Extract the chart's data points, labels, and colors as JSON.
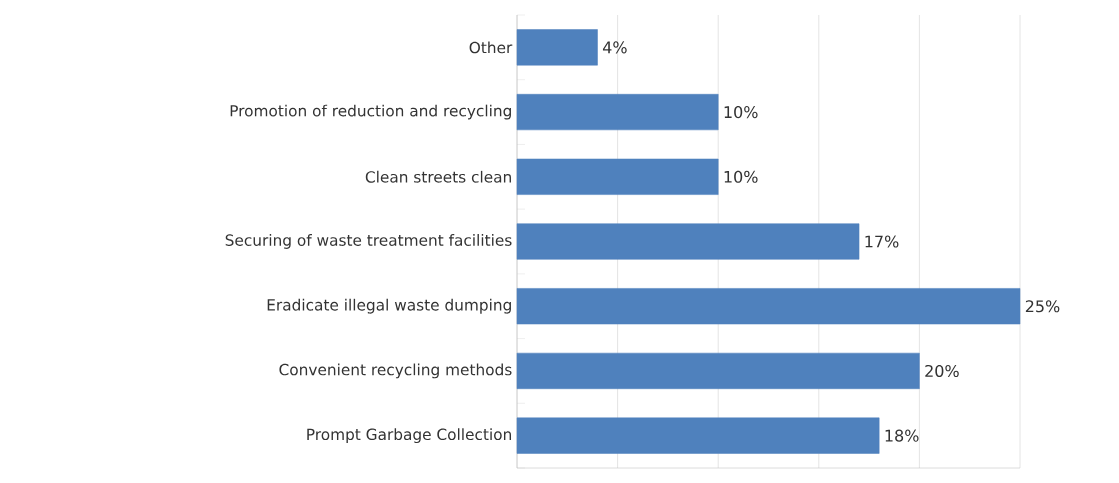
{
  "chart_data": {
    "type": "bar",
    "orientation": "horizontal",
    "categories": [
      "Other",
      "Promotion of reduction and recycling",
      "Clean streets clean",
      "Securing of waste treatment facilities",
      "Eradicate illegal waste dumping",
      "Convenient recycling methods",
      "Prompt Garbage Collection"
    ],
    "values": [
      4,
      10,
      10,
      17,
      25,
      20,
      18
    ],
    "value_labels": [
      "4%",
      "10%",
      "10%",
      "17%",
      "25%",
      "20%",
      "18%"
    ],
    "color": "#4f81bd",
    "grid": "x",
    "tick_labels": "y"
  }
}
